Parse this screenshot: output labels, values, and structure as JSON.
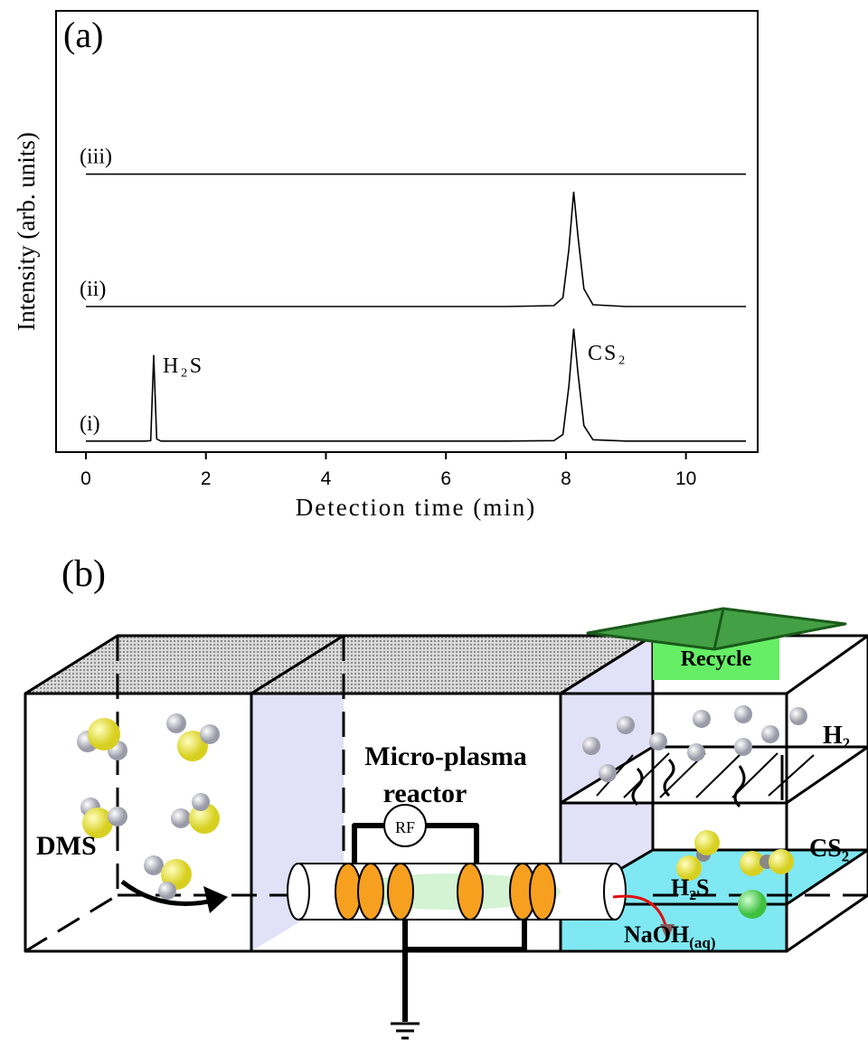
{
  "chart_data": {
    "type": "line",
    "panel_label": "(a)",
    "x_label": "Detection time (min)",
    "y_label": "Intensity (arb. units)",
    "x": [
      0,
      1,
      1.08,
      1.13,
      1.18,
      1.25,
      2,
      3,
      4,
      5,
      6,
      7,
      7.8,
      7.95,
      8.05,
      8.13,
      8.2,
      8.3,
      8.45,
      9,
      10,
      11
    ],
    "series": [
      {
        "name": "(i)",
        "color": "#000000",
        "values": [
          2.5,
          2.5,
          2.6,
          22,
          3,
          2.5,
          2.5,
          2.5,
          2.5,
          2.5,
          2.5,
          2.5,
          2.6,
          4,
          15,
          28,
          18,
          6,
          2.8,
          2.5,
          2.5,
          2.5
        ]
      },
      {
        "name": "(ii)",
        "color": "#000000",
        "values": [
          33,
          33,
          33,
          33,
          33,
          33,
          33,
          33,
          33,
          33,
          33,
          33,
          33.2,
          35,
          46,
          59,
          49,
          37,
          33.4,
          33,
          33,
          33
        ]
      },
      {
        "name": "(iii)",
        "color": "#000000",
        "values": [
          63,
          63,
          63,
          63,
          63,
          63,
          63,
          63,
          63,
          63,
          63,
          63,
          63,
          63,
          63,
          63,
          63,
          63,
          63,
          63,
          63,
          63
        ]
      }
    ],
    "annotations": [
      "H₂S",
      "CS₂"
    ],
    "xlim": [
      0,
      11
    ],
    "xticks": [
      0,
      2,
      4,
      6,
      8,
      10
    ],
    "ylim": [
      0,
      100
    ]
  },
  "diagram": {
    "panel_label": "(b)",
    "recycle": "Recycle",
    "reactor_line1": "Micro-plasma",
    "reactor_line2": "reactor",
    "h2": "H₂",
    "cs2": "CS₂",
    "dms": "DMS",
    "rf": "RF",
    "h2s": "H₂S",
    "naoh": "NaOH",
    "naoh_sub": "(aq)"
  }
}
